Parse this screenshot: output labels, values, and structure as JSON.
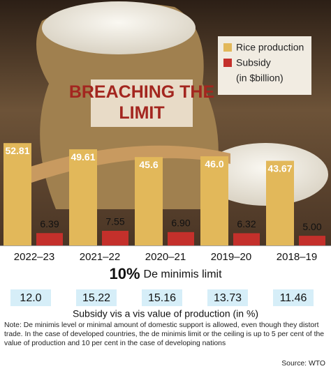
{
  "chart_data": {
    "type": "bar",
    "title": "BREACHING THE LIMIT",
    "categories": [
      "2022–23",
      "2021–22",
      "2020–21",
      "2019–20",
      "2018–19"
    ],
    "series": [
      {
        "name": "Rice production",
        "color": "#e2b85a",
        "values": [
          52.81,
          49.61,
          45.6,
          46.0,
          43.67
        ],
        "value_labels": [
          "52.81",
          "49.61",
          "45.6",
          "46.0",
          "43.67"
        ]
      },
      {
        "name": "Subsidy",
        "color": "#c4302b",
        "values": [
          6.39,
          7.55,
          6.9,
          6.32,
          5.0
        ],
        "value_labels": [
          "6.39",
          "7.55",
          "6.90",
          "6.32",
          "5.00"
        ]
      }
    ],
    "unit": "(in $billion)",
    "limit_value": "10%",
    "limit_label": "De minimis limit",
    "ratio_values": [
      "12.0",
      "15.22",
      "15.16",
      "13.73",
      "11.46"
    ],
    "ratio_caption": "Subsidy vis a vis value of production (in %)",
    "note": "Note: De minimis level or minimal amount of domestic support is allowed, even though they distort trade. In the case of developed countries, the de minimis limit or the ceiling is up to 5 per cent of the value of production and 10 per cent in the case of developing nations",
    "source": "Source: WTO"
  }
}
